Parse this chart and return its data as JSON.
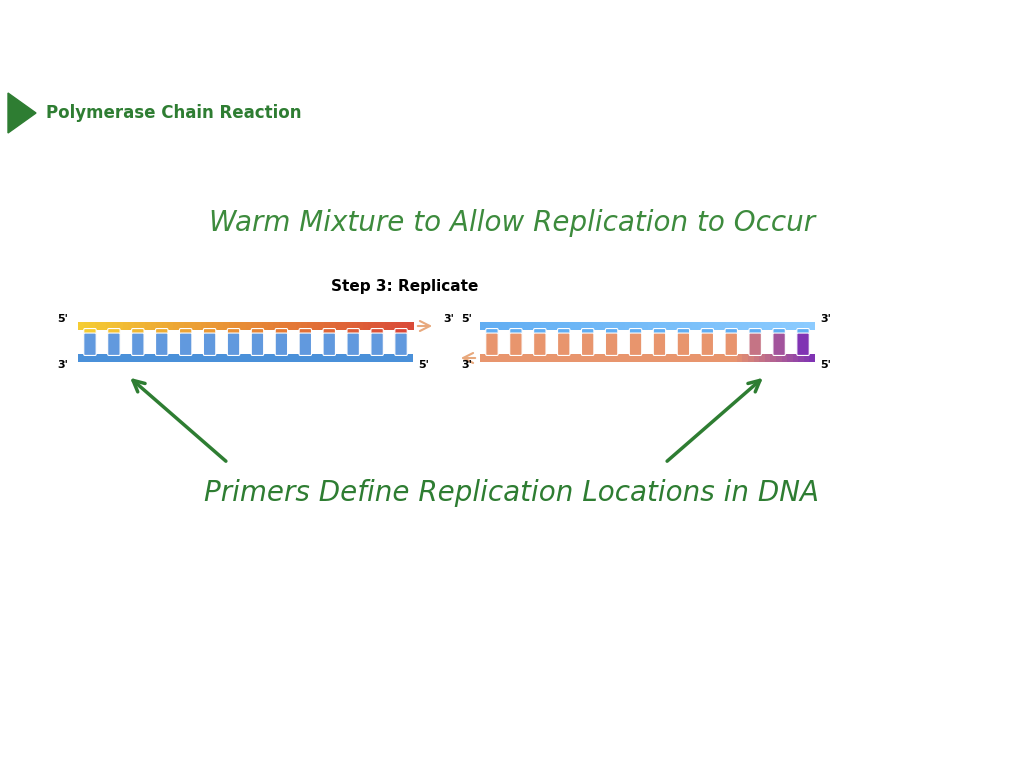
{
  "title": "Polymerase Chain Reaction",
  "title_color": "#2e7d32",
  "title_fontsize": 12,
  "arrow_color": "#2e7d32",
  "warm_text": "Warm Mixture to Allow Replication to Occur",
  "warm_text_color": "#3d8b3d",
  "warm_text_fontsize": 20,
  "step_text": "Step 3: Replicate",
  "step_text_fontsize": 11,
  "primers_text": "Primers Define Replication Locations in DNA",
  "primers_text_color": "#2e7d32",
  "primers_text_fontsize": 20,
  "bg_color": "#ffffff",
  "strand1_bot_color": "#4a90d9",
  "strand2_top_color": "#5ba8e8",
  "strand2_bot_color": "#e8956d",
  "strand2_purple_color": "#9b59b6",
  "arrow_strand_color": "#e8956d"
}
